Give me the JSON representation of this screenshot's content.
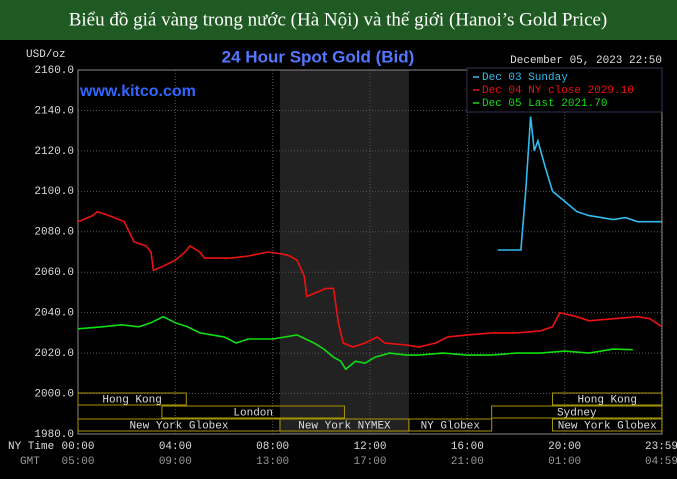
{
  "banner": "Biểu đồ giá vàng trong nước (Hà Nội) và thế giới (Hanoi’s Gold Price)",
  "chart_data": {
    "type": "line",
    "title": "24 Hour Spot Gold (Bid)",
    "source": "www.kitco.com",
    "timestamp": "December 05, 2023 22:50",
    "y_label": "USD/oz",
    "x_label": "NY Time",
    "x2_label": "GMT",
    "xlim": [
      0,
      24
    ],
    "ylim": [
      1980,
      2160
    ],
    "xticks": [
      {
        "value": 0,
        "label": "00:00"
      },
      {
        "value": 4,
        "label": "04:00"
      },
      {
        "value": 8,
        "label": "08:00"
      },
      {
        "value": 12,
        "label": "12:00"
      },
      {
        "value": 16,
        "label": "16:00"
      },
      {
        "value": 20,
        "label": "20:00"
      },
      {
        "value": 23.98,
        "label": "23:59"
      }
    ],
    "x2tick_labels": [
      "05:00",
      "09:00",
      "13:00",
      "17:00",
      "21:00",
      "01:00",
      "04:59"
    ],
    "yticks": [
      {
        "value": 1980,
        "label": "1980.0"
      },
      {
        "value": 2000,
        "label": "2000.0"
      },
      {
        "value": 2020,
        "label": "2020.0"
      },
      {
        "value": 2040,
        "label": "2040.0"
      },
      {
        "value": 2060,
        "label": "2060.0"
      },
      {
        "value": 2080,
        "label": "2080.0"
      },
      {
        "value": 2100,
        "label": "2100.0"
      },
      {
        "value": 2120,
        "label": "2120.0"
      },
      {
        "value": 2140,
        "label": "2140.0"
      },
      {
        "value": 2160,
        "label": "2160.0"
      }
    ],
    "grid": true,
    "sessions": [
      {
        "name": "Hong Kong",
        "start": 0,
        "end": 4.45
      },
      {
        "name": "London",
        "start": 3.45,
        "end": 10.95
      },
      {
        "name": "New York Globex",
        "start": 0,
        "end": 8.3
      },
      {
        "name": "New York NYMEX",
        "start": 8.3,
        "end": 13.6
      },
      {
        "name": "NY Globex",
        "start": 13.6,
        "end": 17
      },
      {
        "name": "Hong Kong",
        "start": 19.5,
        "end": 24
      },
      {
        "name": "Sydney",
        "start": 17,
        "end": 24
      },
      {
        "name": "New York Globex",
        "start": 19.5,
        "end": 24
      }
    ],
    "series": [
      {
        "name": "Dec 03 Sunday",
        "color": "#33bbee",
        "x": [
          17.25,
          18.2,
          18.4,
          18.6,
          18.75,
          18.9,
          19.2,
          19.5,
          20,
          20.5,
          21,
          21.5,
          22,
          22.5,
          23,
          23.5,
          24
        ],
        "values": [
          2071,
          2071,
          2100,
          2137,
          2120,
          2125,
          2112,
          2100,
          2095,
          2090,
          2088,
          2087,
          2086,
          2087,
          2085,
          2085,
          2085
        ]
      },
      {
        "name": "Dec 04 NY close 2029.10",
        "color": "#ee1111",
        "x": [
          0,
          0.6,
          0.8,
          1.5,
          1.9,
          2.3,
          2.8,
          3.0,
          3.1,
          3.5,
          4,
          4.4,
          4.6,
          5,
          5.2,
          6.3,
          7,
          7.8,
          8.4,
          8.7,
          9.0,
          9.3,
          9.4,
          9.8,
          10.2,
          10.5,
          10.7,
          10.9,
          11.3,
          11.8,
          12.3,
          12.6,
          13.5,
          14,
          14.7,
          15.2,
          16,
          17,
          18,
          19,
          19.5,
          19.8,
          20.5,
          21,
          22,
          23,
          23.5,
          24
        ],
        "values": [
          2085,
          2088,
          2090,
          2087,
          2085,
          2075,
          2073,
          2070,
          2061,
          2063,
          2066,
          2070,
          2073,
          2070,
          2067,
          2067,
          2068,
          2070,
          2069,
          2068,
          2066,
          2058,
          2048,
          2050,
          2052,
          2052,
          2035,
          2025,
          2023,
          2025,
          2028,
          2025,
          2024,
          2023,
          2025,
          2028,
          2029,
          2030,
          2030,
          2031,
          2033,
          2040,
          2038,
          2036,
          2037,
          2038,
          2037,
          2033
        ]
      },
      {
        "name": "Dec 05 Last 2021.70",
        "color": "#11dd11",
        "x": [
          0,
          1,
          1.8,
          2.5,
          3,
          3.5,
          4,
          4.5,
          5,
          5.5,
          6,
          6.5,
          7,
          8,
          9,
          9.7,
          10.1,
          10.5,
          10.8,
          11.0,
          11.4,
          11.8,
          12.2,
          12.8,
          13.5,
          14,
          15,
          16,
          17,
          18,
          19,
          20,
          21,
          22,
          22.8
        ],
        "values": [
          2032,
          2033,
          2034,
          2033,
          2035,
          2038,
          2035,
          2033,
          2030,
          2029,
          2028,
          2025,
          2027,
          2027,
          2029,
          2025,
          2022,
          2018,
          2016,
          2012,
          2016,
          2015,
          2018,
          2020,
          2019,
          2019,
          2020,
          2019,
          2019,
          2020,
          2020,
          2021,
          2020,
          2022,
          2021.7
        ]
      }
    ]
  }
}
